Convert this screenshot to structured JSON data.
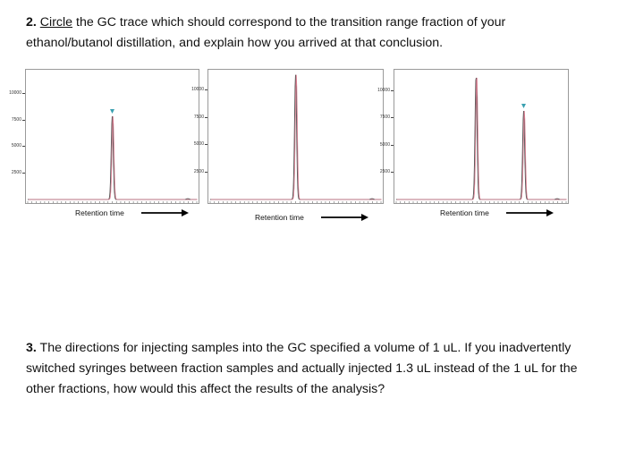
{
  "question2": {
    "number": "2.",
    "circle": "Circle",
    "text_after_circle": " the GC trace which should correspond to the transition range fraction of your ethanol/butanol distillation, and explain how you arrived at that conclusion."
  },
  "question3": {
    "number": "3.",
    "text": " The directions for injecting samples into the GC specified a volume of 1 uL.  If you inadvertently switched syringes between fraction samples and actually injected 1.3 uL instead of the 1 uL for the other fractions, how would this affect the results of the analysis?"
  },
  "colors": {
    "trace_dark": "#555555",
    "trace_pink": "#d97a8e",
    "marker": "#3aa0b0",
    "axis": "#9a9a9a"
  },
  "chart_data": [
    {
      "type": "line",
      "xlabel": "Retention time",
      "ylabel": "",
      "ylim": [
        0,
        12000
      ],
      "yticks": [
        10000,
        7500,
        5000,
        2500
      ],
      "ytick_labels": [
        "10000",
        "7500",
        "5000",
        "2500"
      ],
      "xlim": [
        0,
        100
      ],
      "peaks": [
        {
          "x": 50,
          "height": 7800,
          "marker": true
        }
      ]
    },
    {
      "type": "line",
      "xlabel": "Retention time",
      "ylabel": "",
      "ylim": [
        0,
        11600
      ],
      "yticks": [
        10000,
        7500,
        5000,
        2500
      ],
      "ytick_labels": [
        "10000",
        "7500",
        "5000",
        "2500"
      ],
      "xlim": [
        0,
        100
      ],
      "peaks": [
        {
          "x": 50,
          "height": 11300,
          "marker": false
        }
      ]
    },
    {
      "type": "line",
      "xlabel": "Retention time",
      "ylabel": "",
      "ylim": [
        0,
        11700
      ],
      "yticks": [
        10000,
        7500,
        5000,
        2500
      ],
      "ytick_labels": [
        "10000",
        "7500",
        "5000",
        "2500"
      ],
      "xlim": [
        0,
        100
      ],
      "peaks": [
        {
          "x": 47,
          "height": 11300,
          "marker": false
        },
        {
          "x": 75,
          "height": 8100,
          "marker": true
        }
      ]
    }
  ]
}
